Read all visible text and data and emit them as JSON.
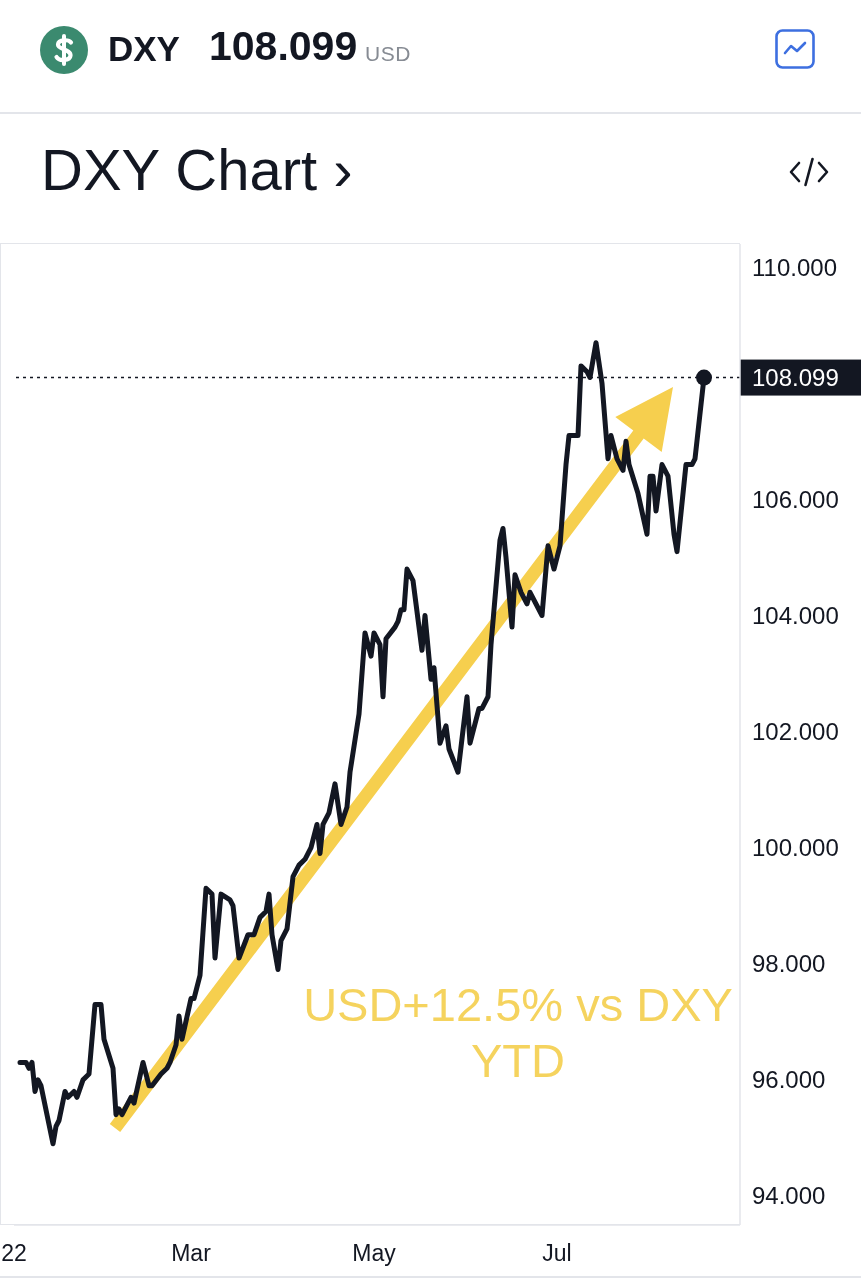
{
  "chart_data": {
    "type": "line",
    "title": "DXY Chart ›",
    "annotations": [
      "DXY",
      "108.099",
      "USD",
      "USD+12.5% vs DXY YTD"
    ],
    "series": [
      {
        "color": "#131722",
        "x": [
          "2022-01-03",
          "2022-01-05",
          "2022-01-06",
          "2022-01-07",
          "2022-01-08",
          "2022-01-09",
          "2022-01-10",
          "2022-01-14",
          "2022-01-15",
          "2022-01-16",
          "2022-01-18",
          "2022-01-19",
          "2022-01-21",
          "2022-01-22",
          "2022-01-24",
          "2022-01-26",
          "2022-01-28",
          "2022-01-30",
          "2022-01-31",
          "2022-02-03",
          "2022-02-04",
          "2022-02-05",
          "2022-02-06",
          "2022-02-09",
          "2022-02-10",
          "2022-02-13",
          "2022-02-15",
          "2022-02-16",
          "2022-02-19",
          "2022-02-21",
          "2022-02-22",
          "2022-02-24",
          "2022-02-25",
          "2022-02-26",
          "2022-03-01",
          "2022-03-02",
          "2022-03-04",
          "2022-03-06",
          "2022-03-08",
          "2022-03-09",
          "2022-03-11",
          "2022-03-14",
          "2022-03-15",
          "2022-03-17",
          "2022-03-20",
          "2022-03-22",
          "2022-03-24",
          "2022-03-26",
          "2022-03-27",
          "2022-03-28",
          "2022-03-30",
          "2022-03-31",
          "2022-04-02",
          "2022-04-04",
          "2022-04-06",
          "2022-04-08",
          "2022-04-10",
          "2022-04-12",
          "2022-04-13",
          "2022-04-14",
          "2022-04-16",
          "2022-04-18",
          "2022-04-20",
          "2022-04-22",
          "2022-04-23",
          "2022-04-26",
          "2022-04-28",
          "2022-04-30",
          "2022-05-01",
          "2022-05-03",
          "2022-05-04",
          "2022-05-05",
          "2022-05-08",
          "2022-05-09",
          "2022-05-10",
          "2022-05-11",
          "2022-05-12",
          "2022-05-14",
          "2022-05-15",
          "2022-05-17",
          "2022-05-18",
          "2022-05-20",
          "2022-05-21",
          "2022-05-23",
          "2022-05-25",
          "2022-05-26",
          "2022-05-29",
          "2022-06-01",
          "2022-06-02",
          "2022-06-05",
          "2022-06-06",
          "2022-06-08",
          "2022-06-09",
          "2022-06-12",
          "2022-06-13",
          "2022-06-14",
          "2022-06-16",
          "2022-06-17",
          "2022-06-19",
          "2022-06-21",
          "2022-06-22",
          "2022-06-26",
          "2022-06-28",
          "2022-06-30",
          "2022-07-02",
          "2022-07-04",
          "2022-07-05",
          "2022-07-08",
          "2022-07-09",
          "2022-07-11",
          "2022-07-12",
          "2022-07-14",
          "2022-07-16",
          "2022-07-18",
          "2022-07-19",
          "2022-07-21",
          "2022-07-23",
          "2022-07-24",
          "2022-07-25",
          "2022-07-28",
          "2022-07-31",
          "2022-08-01",
          "2022-08-02",
          "2022-08-03",
          "2022-08-05",
          "2022-08-07",
          "2022-08-09",
          "2022-08-10",
          "2022-08-13",
          "2022-08-15",
          "2022-08-16",
          "2022-08-19"
        ],
        "values": [
          96.3,
          96.3,
          96.2,
          96.3,
          95.8,
          96.0,
          95.9,
          94.9,
          95.2,
          95.3,
          95.8,
          95.7,
          95.8,
          95.7,
          96.0,
          96.1,
          97.3,
          97.3,
          96.7,
          96.2,
          95.4,
          95.5,
          95.4,
          95.7,
          95.6,
          96.3,
          95.9,
          95.9,
          96.1,
          96.2,
          96.3,
          96.6,
          97.1,
          96.7,
          97.4,
          97.4,
          97.8,
          99.3,
          99.2,
          98.1,
          99.2,
          99.1,
          99.0,
          98.1,
          98.5,
          98.5,
          98.8,
          98.9,
          99.2,
          98.5,
          97.9,
          98.4,
          98.6,
          99.5,
          99.7,
          99.8,
          100.0,
          100.4,
          99.9,
          100.4,
          100.6,
          101.1,
          100.4,
          100.7,
          101.3,
          102.3,
          103.7,
          103.3,
          103.7,
          103.5,
          102.6,
          103.6,
          103.8,
          103.9,
          104.1,
          104.1,
          104.8,
          104.6,
          104.2,
          103.4,
          104.0,
          102.9,
          103.1,
          101.8,
          102.1,
          101.7,
          101.3,
          102.6,
          101.8,
          102.4,
          102.4,
          102.6,
          103.5,
          105.3,
          105.5,
          105.0,
          103.8,
          104.7,
          104.4,
          104.2,
          104.4,
          104.0,
          105.2,
          104.8,
          105.2,
          106.6,
          107.1,
          107.1,
          108.3,
          108.2,
          108.1,
          108.7,
          108.0,
          106.7,
          107.1,
          106.7,
          106.5,
          107.0,
          106.6,
          106.1,
          105.4,
          106.4,
          106.4,
          105.8,
          106.6,
          106.4,
          105.4,
          105.1,
          106.6,
          106.6,
          106.7,
          108.099
        ]
      },
      {
        "type": "scatter",
        "color": "#131722",
        "marker": "circle",
        "x": [
          "2022-08-19"
        ],
        "values": [
          108.099
        ]
      }
    ],
    "xlim": [
      "2022-01-01",
      "2022-08-31"
    ],
    "xticks": [
      {
        "value": "2022-01-01",
        "label": "22"
      },
      {
        "value": "2022-03-01",
        "label": "Mar"
      },
      {
        "value": "2022-05-01",
        "label": "May"
      },
      {
        "value": "2022-07-01",
        "label": "Jul"
      }
    ],
    "ylim": [
      93.5,
      110.4
    ],
    "yticks": [
      {
        "value": 94,
        "label": "94.000"
      },
      {
        "value": 96,
        "label": "96.000"
      },
      {
        "value": 98,
        "label": "98.000"
      },
      {
        "value": 100,
        "label": "100.000"
      },
      {
        "value": 102,
        "label": "102.000"
      },
      {
        "value": 104,
        "label": "104.000"
      },
      {
        "value": 106,
        "label": "106.000"
      },
      {
        "value": 110,
        "label": "110.000"
      }
    ],
    "ref_lines": [
      {
        "axis": "y",
        "value": 108.099,
        "label": "108.099",
        "color": "#131722",
        "line_style": "dotted"
      }
    ],
    "grid": false,
    "legend": false,
    "marker": "none",
    "line_style": "solid"
  }
}
